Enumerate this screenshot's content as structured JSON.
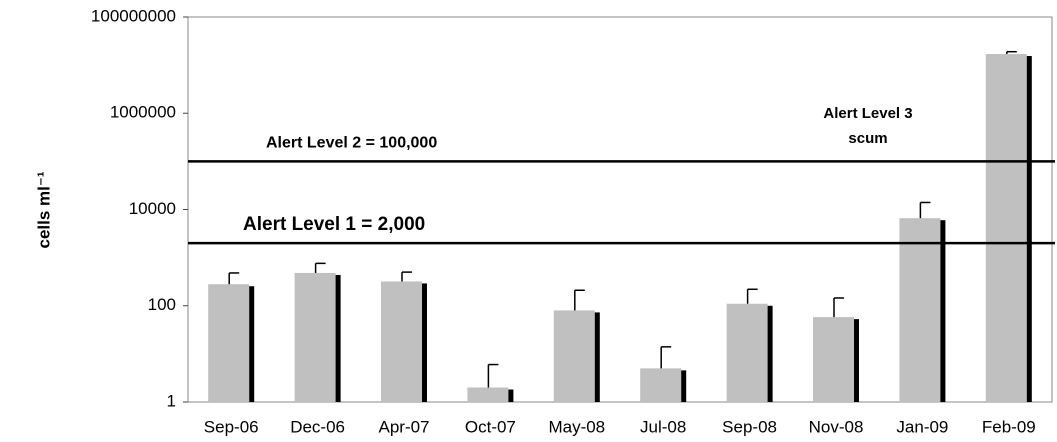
{
  "chart_data": {
    "type": "bar",
    "ylabel": "cells ml⁻¹",
    "categories": [
      "Sep-06",
      "Dec-06",
      "Apr-07",
      "Oct-07",
      "May-08",
      "Jul-08",
      "Sep-08",
      "Nov-08",
      "Jan-09",
      "Feb-09"
    ],
    "values": [
      280,
      480,
      320,
      2,
      80,
      5,
      110,
      58,
      6600,
      17000000
    ],
    "errors": [
      200,
      280,
      180,
      4,
      130,
      9,
      110,
      87,
      7400,
      2000000
    ],
    "color": "#c0c0c0",
    "shadow_color": "#000000",
    "log_scale": true,
    "ylim": [
      1,
      100000000
    ],
    "yticks": [
      1,
      100,
      10000,
      1000000,
      100000000
    ],
    "reference_lines": [
      {
        "value": 2000,
        "label": "Alert Level 1 = 2,000"
      },
      {
        "value": 100000,
        "label": "Alert Level 2 = 100,000"
      }
    ],
    "annotation": [
      "Alert Level 3",
      "scum"
    ]
  }
}
